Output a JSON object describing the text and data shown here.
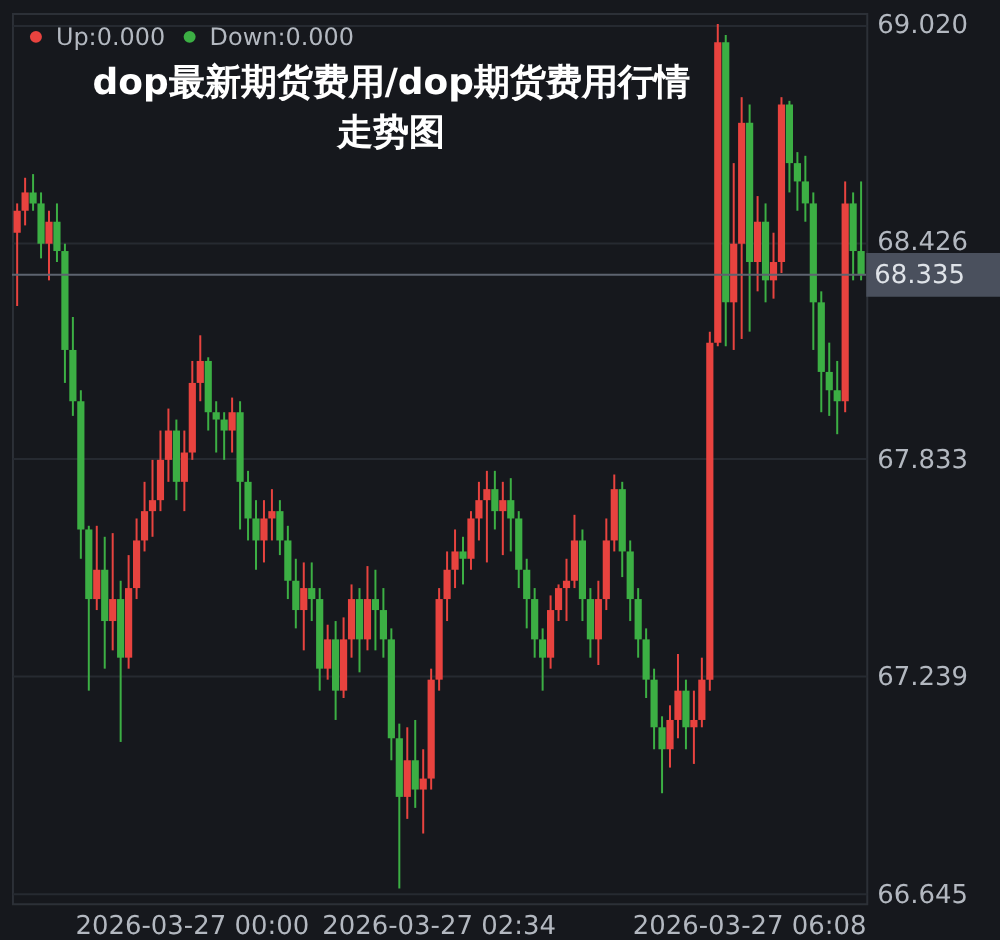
{
  "chart_data": {
    "type": "candlestick",
    "title": "dop最新期货费用/dop期货费用行情走势图",
    "categories": [
      null,
      null,
      null,
      null,
      null,
      null,
      null,
      null,
      null,
      null,
      null,
      null,
      null,
      null,
      null,
      null,
      null,
      null,
      null,
      null,
      null,
      null,
      "2026-03-27 00:00",
      null,
      null,
      null,
      null,
      null,
      null,
      null,
      null,
      null,
      null,
      null,
      null,
      null,
      null,
      null,
      null,
      null,
      null,
      null,
      null,
      null,
      null,
      null,
      null,
      null,
      null,
      null,
      null,
      null,
      null,
      "2026-03-27 02:34",
      null,
      null,
      null,
      null,
      null,
      null,
      null,
      null,
      null,
      null,
      null,
      null,
      null,
      null,
      null,
      null,
      null,
      null,
      null,
      null,
      null,
      null,
      null,
      null,
      null,
      null,
      null,
      null,
      null,
      null,
      null,
      null,
      null,
      null,
      null,
      null,
      null,
      null,
      "2026-03-27 06:08",
      null,
      null,
      null,
      null,
      null,
      null,
      null,
      null,
      null,
      null,
      null,
      null,
      null,
      null
    ],
    "series": [
      {
        "name": "Up:0.000",
        "color": "#e8433f",
        "ohlc": [
          [
            68.45,
            68.53,
            68.25,
            68.51
          ],
          [
            68.51,
            68.6,
            68.47,
            68.56
          ],
          null,
          null,
          [
            68.42,
            68.51,
            68.32,
            68.48
          ],
          null,
          null,
          null,
          null,
          null,
          [
            67.45,
            67.65,
            67.42,
            67.53
          ],
          null,
          [
            67.39,
            67.63,
            67.31,
            67.45
          ],
          null,
          [
            67.29,
            67.57,
            67.26,
            67.48
          ],
          [
            67.48,
            67.67,
            67.45,
            67.61
          ],
          [
            67.61,
            67.77,
            67.58,
            67.69
          ],
          [
            67.69,
            67.83,
            67.62,
            67.72
          ],
          [
            67.72,
            67.91,
            67.69,
            67.83
          ],
          [
            67.83,
            67.97,
            67.77,
            67.91
          ],
          null,
          [
            67.77,
            67.91,
            67.69,
            67.85
          ],
          [
            67.85,
            68.1,
            67.83,
            68.04
          ],
          [
            68.04,
            68.17,
            67.99,
            68.1
          ],
          null,
          null,
          null,
          [
            67.91,
            68.0,
            67.85,
            67.96
          ],
          null,
          null,
          null,
          [
            67.61,
            67.72,
            67.55,
            67.67
          ],
          [
            67.67,
            67.75,
            67.61,
            67.69
          ],
          null,
          null,
          null,
          [
            67.42,
            67.55,
            67.31,
            67.48
          ],
          null,
          null,
          [
            67.26,
            67.38,
            67.23,
            67.34
          ],
          null,
          [
            67.2,
            67.4,
            67.18,
            67.34
          ],
          [
            67.34,
            67.49,
            67.29,
            67.45
          ],
          null,
          [
            67.34,
            67.54,
            67.31,
            67.45
          ],
          null,
          null,
          null,
          null,
          [
            66.91,
            67.1,
            66.85,
            67.01
          ],
          null,
          [
            66.93,
            67.04,
            66.81,
            66.96
          ],
          [
            66.96,
            67.26,
            66.93,
            67.23
          ],
          [
            67.23,
            67.48,
            67.2,
            67.45
          ],
          [
            67.45,
            67.58,
            67.39,
            67.53
          ],
          [
            67.53,
            67.64,
            67.48,
            67.58
          ],
          null,
          [
            67.56,
            67.69,
            67.53,
            67.67
          ],
          [
            67.67,
            67.77,
            67.61,
            67.72
          ],
          [
            67.72,
            67.8,
            67.55,
            67.75
          ],
          null,
          [
            67.69,
            67.77,
            67.57,
            67.72
          ],
          null,
          null,
          null,
          null,
          null,
          [
            67.29,
            67.46,
            67.26,
            67.42
          ],
          [
            67.42,
            67.49,
            67.39,
            67.48
          ],
          [
            67.48,
            67.56,
            67.39,
            67.5
          ],
          [
            67.5,
            67.68,
            67.48,
            67.61
          ],
          null,
          null,
          [
            67.34,
            67.5,
            67.27,
            67.45
          ],
          [
            67.45,
            67.67,
            67.42,
            67.61
          ],
          [
            67.61,
            67.79,
            67.58,
            67.75
          ],
          null,
          null,
          null,
          null,
          null,
          null,
          [
            67.04,
            67.16,
            66.99,
            67.12
          ],
          [
            67.12,
            67.3,
            67.07,
            67.2
          ],
          null,
          [
            67.1,
            67.2,
            67.0,
            67.12
          ],
          [
            67.12,
            67.29,
            67.1,
            67.23
          ],
          [
            67.23,
            68.18,
            67.2,
            68.15
          ],
          [
            68.15,
            69.02,
            68.14,
            68.97
          ],
          null,
          [
            68.26,
            68.64,
            68.13,
            68.42
          ],
          [
            68.42,
            68.82,
            68.16,
            68.75
          ],
          null,
          [
            68.37,
            68.55,
            68.29,
            68.48
          ],
          null,
          [
            68.32,
            68.45,
            68.27,
            68.37
          ],
          [
            68.37,
            68.82,
            68.34,
            68.8
          ],
          null,
          null,
          null,
          null,
          null,
          null,
          null,
          [
            67.99,
            68.59,
            67.96,
            68.53
          ],
          null,
          null
        ]
      },
      {
        "name": "Down:0.000",
        "color": "#3caf44",
        "ohlc": [
          null,
          null,
          [
            68.56,
            68.61,
            68.51,
            68.53
          ],
          [
            68.53,
            68.56,
            68.38,
            68.42
          ],
          null,
          [
            68.48,
            68.53,
            68.37,
            68.4
          ],
          [
            68.4,
            68.42,
            68.04,
            68.13
          ],
          [
            68.13,
            68.22,
            67.95,
            67.99
          ],
          [
            67.99,
            68.02,
            67.56,
            67.64
          ],
          [
            67.64,
            67.65,
            67.2,
            67.45
          ],
          null,
          [
            67.53,
            67.62,
            67.26,
            67.39
          ],
          null,
          [
            67.45,
            67.5,
            67.06,
            67.29
          ],
          null,
          null,
          null,
          null,
          null,
          null,
          [
            67.91,
            67.94,
            67.72,
            67.77
          ],
          null,
          null,
          null,
          [
            68.1,
            68.11,
            67.91,
            67.96
          ],
          [
            67.96,
            67.99,
            67.85,
            67.94
          ],
          [
            67.94,
            67.96,
            67.83,
            67.91
          ],
          null,
          [
            67.96,
            67.99,
            67.64,
            67.77
          ],
          [
            67.77,
            67.8,
            67.61,
            67.67
          ],
          [
            67.67,
            67.72,
            67.53,
            67.61
          ],
          null,
          null,
          [
            67.69,
            67.72,
            67.57,
            67.61
          ],
          [
            67.61,
            67.65,
            67.45,
            67.5
          ],
          [
            67.5,
            67.56,
            67.37,
            67.42
          ],
          null,
          [
            67.48,
            67.55,
            67.39,
            67.45
          ],
          [
            67.45,
            67.48,
            67.2,
            67.26
          ],
          null,
          [
            67.34,
            67.39,
            67.12,
            67.2
          ],
          null,
          null,
          [
            67.45,
            67.48,
            67.25,
            67.34
          ],
          null,
          [
            67.45,
            67.53,
            67.31,
            67.42
          ],
          [
            67.42,
            67.48,
            67.29,
            67.34
          ],
          [
            67.34,
            67.37,
            67.01,
            67.07
          ],
          [
            67.07,
            67.11,
            66.66,
            66.91
          ],
          null,
          [
            67.01,
            67.12,
            66.88,
            66.93
          ],
          null,
          null,
          null,
          null,
          null,
          [
            67.58,
            67.62,
            67.49,
            67.56
          ],
          null,
          null,
          null,
          [
            67.75,
            67.8,
            67.64,
            67.69
          ],
          null,
          [
            67.72,
            67.78,
            67.58,
            67.67
          ],
          [
            67.67,
            67.69,
            67.48,
            67.53
          ],
          [
            67.53,
            67.56,
            67.37,
            67.45
          ],
          [
            67.45,
            67.48,
            67.29,
            67.34
          ],
          [
            67.34,
            67.37,
            67.2,
            67.29
          ],
          null,
          null,
          null,
          null,
          [
            67.61,
            67.64,
            67.39,
            67.45
          ],
          [
            67.45,
            67.48,
            67.29,
            67.34
          ],
          null,
          null,
          null,
          [
            67.75,
            67.77,
            67.51,
            67.58
          ],
          [
            67.58,
            67.61,
            67.39,
            67.45
          ],
          [
            67.45,
            67.48,
            67.29,
            67.34
          ],
          [
            67.34,
            67.37,
            67.18,
            67.23
          ],
          [
            67.23,
            67.26,
            67.04,
            67.1
          ],
          [
            67.1,
            67.13,
            66.92,
            67.04
          ],
          null,
          null,
          [
            67.2,
            67.23,
            67.04,
            67.1
          ],
          null,
          null,
          null,
          null,
          [
            68.97,
            68.99,
            68.14,
            68.26
          ],
          null,
          null,
          [
            68.75,
            68.8,
            68.18,
            68.37
          ],
          null,
          [
            68.48,
            68.53,
            68.26,
            68.32
          ],
          null,
          null,
          [
            68.8,
            68.81,
            68.56,
            68.64
          ],
          [
            68.64,
            68.67,
            68.51,
            68.59
          ],
          [
            68.59,
            68.66,
            68.48,
            68.53
          ],
          [
            68.53,
            68.56,
            68.13,
            68.26
          ],
          [
            68.26,
            68.29,
            67.96,
            68.07
          ],
          [
            68.07,
            68.15,
            67.95,
            68.02
          ],
          [
            68.02,
            68.1,
            67.9,
            67.99
          ],
          null,
          [
            68.53,
            68.56,
            68.32,
            68.4
          ],
          [
            68.4,
            68.59,
            68.32,
            68.335
          ]
        ]
      }
    ],
    "ylim": [
      66.62,
      69.05
    ],
    "yticks": [
      66.645,
      67.239,
      67.833,
      68.426,
      {
        "value": 69.02,
        "label": "69.020"
      }
    ],
    "ref_lines": [
      {
        "axis": "y",
        "value": 68.335,
        "label": "68.335"
      }
    ],
    "grid": "y",
    "legend": "top left"
  }
}
